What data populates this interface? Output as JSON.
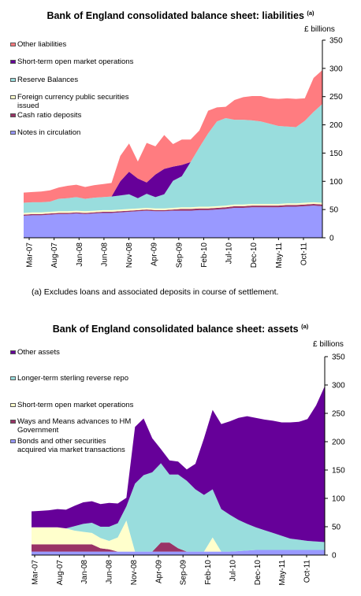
{
  "charts": [
    {
      "title": "Bank of England  consolidated  balance  sheet:  liabilities",
      "title_note": "(a)",
      "unit_label": "£ billions",
      "footnote": "(a) Excludes loans and associated deposits in course of settlement."
    },
    {
      "title": "Bank of England  consolidated  balance  sheet:  assets",
      "title_note": "(a)",
      "unit_label": "£ billions"
    }
  ],
  "chart_data": [
    {
      "type": "area",
      "stacked": true,
      "title": "Bank of England  consolidated  balance  sheet:  liabilities",
      "ylabel": "£ billions",
      "ylim": [
        0,
        350
      ],
      "yticks": [
        0,
        50,
        100,
        150,
        200,
        250,
        300,
        350
      ],
      "x_tick_labels": [
        "Mar-07",
        "Aug-07",
        "Jan-08",
        "Jun-08",
        "Nov-08",
        "Apr-09",
        "Sep-09",
        "Feb-10",
        "Jul-10",
        "Dec-10",
        "May-11",
        "Oct-11"
      ],
      "legend_position": "top-left",
      "x": [
        "Mar-07",
        "May-07",
        "Jul-07",
        "Aug-07",
        "Sep-07",
        "Nov-07",
        "Jan-08",
        "Mar-08",
        "May-08",
        "Jul-08",
        "Sep-08",
        "Sep-08",
        "Oct-08",
        "Nov-08",
        "Dec-08",
        "Jan-09",
        "Feb-09",
        "Mar-09",
        "Apr-09",
        "May-09",
        "Jun-09",
        "Jul-09",
        "Aug-09",
        "Oct-09",
        "Dec-09",
        "Feb-10",
        "May-10",
        "Aug-10",
        "Nov-10",
        "Feb-11",
        "May-11",
        "Aug-11",
        "Oct-11",
        "Nov-11",
        "Dec-11"
      ],
      "series": [
        {
          "name": "Notes in circulation",
          "color": "#9999ff",
          "values": [
            39,
            40,
            40,
            41,
            42,
            42,
            43,
            42,
            43,
            44,
            44,
            45,
            46,
            47,
            48,
            47,
            47,
            48,
            48,
            48,
            49,
            49,
            50,
            51,
            53,
            53,
            54,
            54,
            54,
            54,
            55,
            55,
            56,
            57,
            56
          ]
        },
        {
          "name": "Cash ratio deposits",
          "color": "#993366",
          "values": [
            2,
            2,
            2,
            2,
            2,
            2,
            2,
            2,
            2,
            2,
            2,
            2,
            2,
            2,
            2,
            2,
            2,
            2,
            3,
            3,
            3,
            3,
            3,
            3,
            3,
            3,
            3,
            3,
            3,
            3,
            3,
            3,
            3,
            3,
            3
          ]
        },
        {
          "name": "Foreign currency public securities issued",
          "color": "#ffffcc",
          "values": [
            3,
            3,
            3,
            3,
            3,
            3,
            3,
            3,
            3,
            3,
            3,
            3,
            3,
            3,
            3,
            3,
            3,
            3,
            3,
            3,
            3,
            3,
            3,
            3,
            3,
            3,
            3,
            3,
            3,
            3,
            3,
            3,
            3,
            3,
            3
          ]
        },
        {
          "name": "Reserve Balances",
          "color": "#99dddd",
          "values": [
            18,
            18,
            18,
            18,
            22,
            23,
            24,
            22,
            23,
            23,
            24,
            25,
            26,
            18,
            25,
            20,
            25,
            48,
            55,
            80,
            105,
            130,
            150,
            155,
            150,
            150,
            148,
            146,
            142,
            138,
            136,
            135,
            145,
            160,
            175
          ]
        },
        {
          "name": "Short-term open market operations",
          "color": "#660099",
          "values": [
            0,
            0,
            0,
            0,
            0,
            0,
            0,
            0,
            0,
            0,
            0,
            25,
            40,
            35,
            20,
            40,
            45,
            25,
            20,
            0,
            0,
            0,
            0,
            0,
            0,
            0,
            0,
            0,
            0,
            0,
            0,
            0,
            0,
            0,
            0
          ]
        },
        {
          "name": "Other liabilities",
          "color": "#ff7c80",
          "values": [
            18,
            18,
            19,
            20,
            20,
            22,
            22,
            21,
            22,
            23,
            24,
            45,
            50,
            30,
            70,
            50,
            60,
            40,
            45,
            40,
            30,
            40,
            25,
            20,
            35,
            40,
            43,
            45,
            45,
            48,
            50,
            50,
            40,
            60,
            60
          ]
        }
      ]
    },
    {
      "type": "area",
      "stacked": true,
      "title": "Bank of England  consolidated  balance  sheet:  assets",
      "ylabel": "£ billions",
      "ylim": [
        0,
        350
      ],
      "yticks": [
        0,
        50,
        100,
        150,
        200,
        250,
        300,
        350
      ],
      "x_tick_labels": [
        "Mar-07",
        "Aug-07",
        "Jan-08",
        "Jun-08",
        "Nov-08",
        "Apr-09",
        "Sep-09",
        "Feb-10",
        "Jul-10",
        "Dec-10",
        "May-11",
        "Oct-11"
      ],
      "legend_position": "top-left",
      "x": [
        "Mar-07",
        "May-07",
        "Jul-07",
        "Aug-07",
        "Sep-07",
        "Nov-07",
        "Jan-08",
        "Mar-08",
        "May-08",
        "Jul-08",
        "Sep-08",
        "Sep-08",
        "Oct-08",
        "Nov-08",
        "Dec-08",
        "Jan-09",
        "Feb-09",
        "Mar-09",
        "Apr-09",
        "May-09",
        "Jun-09",
        "Jul-09",
        "Aug-09",
        "Oct-09",
        "Dec-09",
        "Feb-10",
        "May-10",
        "Aug-10",
        "Nov-10",
        "Feb-11",
        "May-11",
        "Aug-11",
        "Oct-11",
        "Nov-11",
        "Dec-11"
      ],
      "series": [
        {
          "name": "Bonds and other securities acquired via market transactions",
          "color": "#9999ff",
          "values": [
            6,
            6,
            6,
            6,
            6,
            6,
            6,
            6,
            6,
            6,
            6,
            6,
            6,
            6,
            6,
            6,
            6,
            6,
            6,
            6,
            6,
            6,
            6,
            6,
            7,
            8,
            9,
            9,
            9,
            9,
            9,
            9,
            9,
            9,
            9
          ]
        },
        {
          "name": "Ways and Means advances to HM Government",
          "color": "#993366",
          "values": [
            13,
            13,
            13,
            13,
            13,
            13,
            13,
            13,
            6,
            4,
            0,
            0,
            0,
            0,
            0,
            16,
            16,
            6,
            0,
            0,
            0,
            0,
            0,
            0,
            0,
            0,
            0,
            0,
            0,
            0,
            0,
            0,
            0,
            0,
            0
          ]
        },
        {
          "name": "Short-term open market operations",
          "color": "#ffffcc",
          "values": [
            30,
            30,
            30,
            30,
            28,
            24,
            22,
            20,
            18,
            15,
            25,
            55,
            0,
            0,
            0,
            0,
            0,
            0,
            0,
            0,
            0,
            25,
            0,
            0,
            0,
            0,
            0,
            0,
            0,
            0,
            0,
            0,
            0,
            0,
            0
          ]
        },
        {
          "name": "Longer-term sterling reverse repo",
          "color": "#99dddd",
          "values": [
            0,
            0,
            0,
            0,
            0,
            8,
            14,
            18,
            20,
            25,
            25,
            25,
            120,
            135,
            140,
            140,
            120,
            130,
            125,
            110,
            100,
            85,
            75,
            65,
            55,
            47,
            40,
            35,
            30,
            25,
            20,
            18,
            16,
            15,
            14
          ]
        },
        {
          "name": "Other assets",
          "color": "#660099",
          "values": [
            28,
            29,
            30,
            32,
            33,
            36,
            38,
            38,
            40,
            42,
            35,
            15,
            100,
            100,
            60,
            25,
            25,
            23,
            20,
            45,
            100,
            140,
            150,
            165,
            180,
            190,
            193,
            195,
            198,
            200,
            205,
            208,
            215,
            240,
            275
          ]
        }
      ]
    }
  ]
}
